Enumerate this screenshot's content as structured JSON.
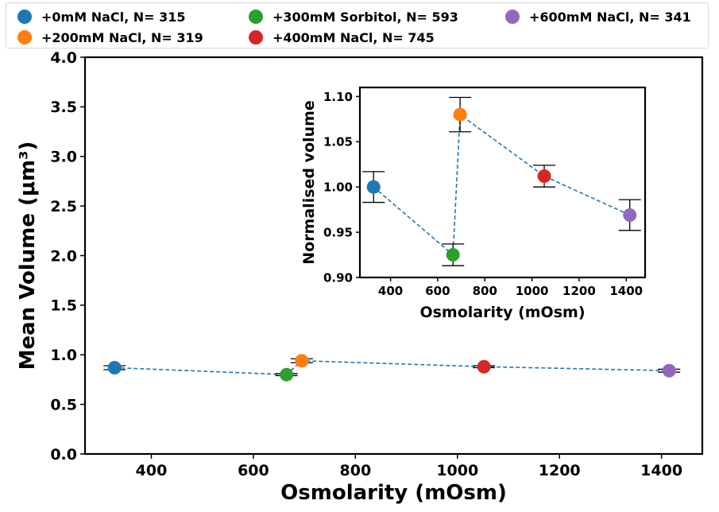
{
  "colors": {
    "blue": "#1f77b4",
    "orange": "#ff7f0e",
    "green": "#2ca02c",
    "red": "#d62728",
    "purple": "#9467bd",
    "line": "#1f77b4",
    "axis": "#000000"
  },
  "chart_data": [
    {
      "type": "scatter",
      "xlabel": "Osmolarity (mOsm)",
      "ylabel": "Mean Volume (μm³)",
      "xlim": [
        270,
        1480
      ],
      "ylim": [
        0.0,
        4.0
      ],
      "xticks": [
        "400",
        "600",
        "800",
        "1000",
        "1200",
        "1400"
      ],
      "yticks": [
        "0.0",
        "0.5",
        "1.0",
        "1.5",
        "2.0",
        "2.5",
        "3.0",
        "3.5",
        "4.0"
      ],
      "connected": "dashed",
      "legend_position": "top",
      "series": [
        {
          "name": "+0mM NaCl, N= 315",
          "color": "blue",
          "x": 328,
          "y": 0.87,
          "err": 0.02
        },
        {
          "name": "+300mM Sorbitol, N= 593",
          "color": "green",
          "x": 665,
          "y": 0.8,
          "err": 0.01
        },
        {
          "name": "+200mM NaCl, N= 319",
          "color": "orange",
          "x": 695,
          "y": 0.94,
          "err": 0.02
        },
        {
          "name": "+400mM NaCl, N= 745",
          "color": "red",
          "x": 1052,
          "y": 0.88,
          "err": 0.01
        },
        {
          "name": "+600mM NaCl, N= 341",
          "color": "purple",
          "x": 1415,
          "y": 0.84,
          "err": 0.015
        }
      ]
    },
    {
      "type": "scatter",
      "xlabel": "Osmolarity (mOsm)",
      "ylabel": "Normalised volume",
      "xlim": [
        270,
        1480
      ],
      "ylim": [
        0.9,
        1.11
      ],
      "xticks": [
        "400",
        "600",
        "800",
        "1000",
        "1200",
        "1400"
      ],
      "yticks": [
        "0.90",
        "0.95",
        "1.00",
        "1.05",
        "1.10"
      ],
      "connected": "dashed",
      "series": [
        {
          "color": "blue",
          "x": 328,
          "y": 1.0,
          "err": 0.017
        },
        {
          "color": "green",
          "x": 665,
          "y": 0.925,
          "err": 0.012
        },
        {
          "color": "orange",
          "x": 695,
          "y": 1.08,
          "err": 0.019
        },
        {
          "color": "red",
          "x": 1052,
          "y": 1.012,
          "err": 0.012
        },
        {
          "color": "purple",
          "x": 1415,
          "y": 0.969,
          "err": 0.017
        }
      ]
    }
  ],
  "legend": {
    "items": [
      {
        "label": "+0mM NaCl, N= 315",
        "color": "blue"
      },
      {
        "label": "+200mM NaCl, N= 319",
        "color": "orange"
      },
      {
        "label": "+300mM Sorbitol, N= 593",
        "color": "green"
      },
      {
        "label": "+400mM NaCl, N= 745",
        "color": "red"
      },
      {
        "label": "+600mM NaCl, N= 341",
        "color": "purple"
      }
    ]
  }
}
